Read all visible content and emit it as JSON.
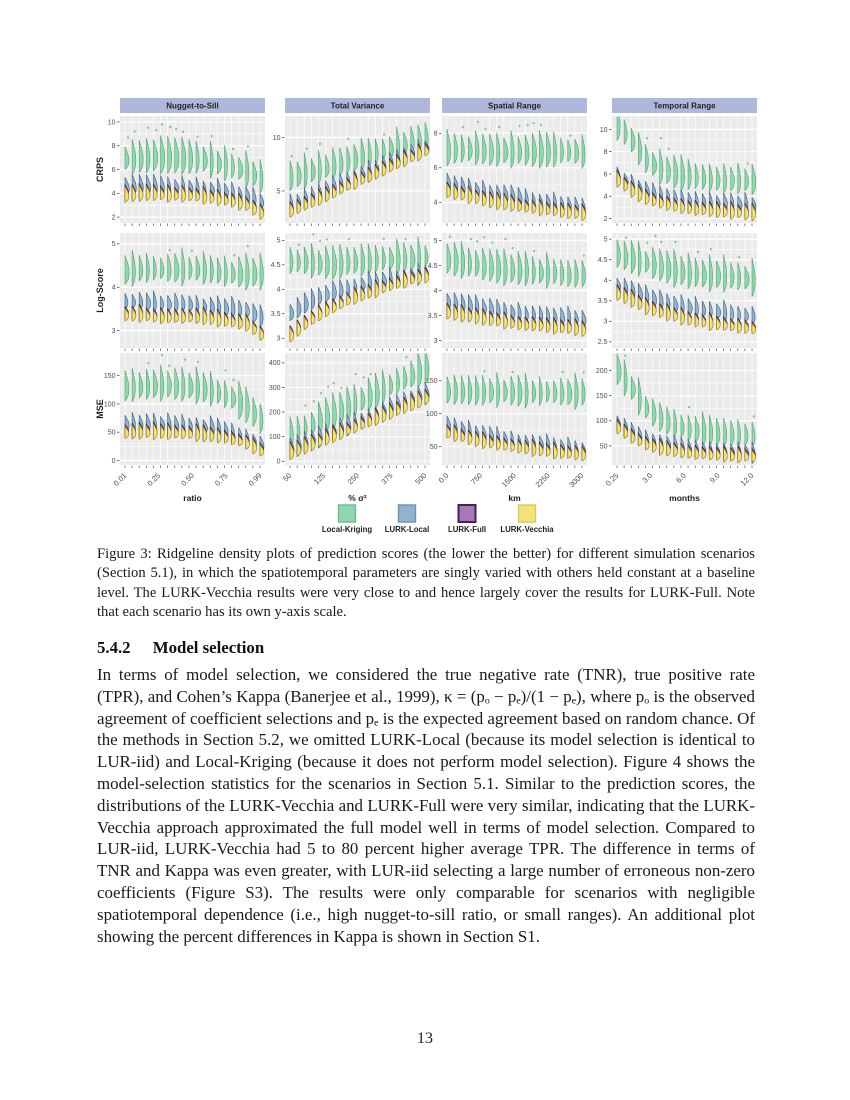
{
  "page": {
    "number": "13"
  },
  "figure": {
    "caption": "Figure 3: Ridgeline density plots of prediction scores (the lower the better) for different simulation scenarios (Section 5.1), in which the spatiotemporal parameters are singly varied with others held constant at a baseline level. The LURK-Vecchia results were very close to and hence largely cover the results for LURK-Full. Note that each scenario has its own y-axis scale.",
    "column_headers": [
      "Nugget-to-Sill",
      "Total Variance",
      "Spatial Range",
      "Temporal Range"
    ],
    "row_labels": [
      "CRPS",
      "Log-Score",
      "MSE"
    ],
    "x_axis_labels": [
      "ratio",
      "% σ²",
      "km",
      "months"
    ],
    "x_tick_labels": [
      [
        "0.01",
        "0.25",
        "0.50",
        "0.75",
        "0.99"
      ],
      [
        "50",
        "125",
        "250",
        "375",
        "500"
      ],
      [
        "0.0",
        "750",
        "1500",
        "2250",
        "3000"
      ],
      [
        "0.25",
        "3.0",
        "6.0",
        "9.0",
        "12.0"
      ]
    ],
    "legend": [
      {
        "name": "Local-Kriging",
        "fill": "#90D8AC",
        "stroke": "#6FB893"
      },
      {
        "name": "LURK-Local",
        "fill": "#92B3CE",
        "stroke": "#6E93AF"
      },
      {
        "name": "LURK-Full",
        "fill": "#A678B5",
        "stroke": "#46205C"
      },
      {
        "name": "LURK-Vecchia",
        "fill": "#F2E375",
        "stroke": "#D8C95B"
      }
    ],
    "colors": {
      "header_bg": "#AEB8DC",
      "header_text": "#1f1f1f",
      "panel_bg": "#EBEBEB",
      "grid": "#FFFFFF",
      "tick_text": "#4d4d4d",
      "tick_mark": "#333333",
      "green_fill": "#90D8AC",
      "green_stroke": "#4FA474",
      "blue_fill": "#92B3CE",
      "blue_stroke": "#35617F",
      "purple_fill": "#A678B5",
      "purple_stroke": "#3A1850",
      "yellow_fill": "#F2E375",
      "yellow_stroke": "#9C8514"
    },
    "chart_data": {
      "type": "ridgeline",
      "description": "12 panels (3 score rows x 4 scenario columns), ~20 ridge groups per panel; each group has Local-Kriging (green, highest), LURK-Local (blue), LURK-Full (purple, hidden behind) and LURK-Vecchia (yellow, lowest). Values below are approximate ridge-center trajectories in data units, left to right.",
      "panels": [
        [
          {
            "ylim": [
              1.5,
              10.5
            ],
            "yticks": [
              2,
              4,
              6,
              8,
              10
            ],
            "green": [
              6.8,
              6.9,
              7.0,
              7.0,
              6.9,
              6.8,
              6.5,
              6.2,
              5.8,
              5.2
            ],
            "blue": [
              4.4,
              4.5,
              4.5,
              4.4,
              4.4,
              4.3,
              4.2,
              4.0,
              3.7,
              3.2
            ],
            "yellow": [
              3.8,
              3.9,
              3.9,
              3.8,
              3.8,
              3.7,
              3.5,
              3.3,
              3.0,
              2.3
            ]
          },
          {
            "ylim": [
              2.0,
              12.0
            ],
            "yticks": [
              5,
              10
            ],
            "green": [
              6.2,
              6.6,
              7.0,
              7.4,
              7.8,
              8.2,
              8.6,
              9.0,
              9.4,
              9.8
            ],
            "blue": [
              3.6,
              4.2,
              4.8,
              5.4,
              6.0,
              6.6,
              7.2,
              7.8,
              8.4,
              8.9
            ],
            "yellow": [
              3.1,
              3.7,
              4.3,
              4.9,
              5.6,
              6.2,
              6.8,
              7.5,
              8.1,
              8.7
            ]
          },
          {
            "ylim": [
              2.8,
              9.0
            ],
            "yticks": [
              4,
              6,
              8
            ],
            "green": [
              7.0,
              7.0,
              7.0,
              6.9,
              6.9,
              6.9,
              6.9,
              6.9,
              6.9,
              6.8
            ],
            "blue": [
              5.0,
              4.8,
              4.6,
              4.4,
              4.3,
              4.1,
              4.0,
              3.9,
              3.8,
              3.6
            ],
            "yellow": [
              4.6,
              4.4,
              4.2,
              4.0,
              3.9,
              3.7,
              3.6,
              3.5,
              3.4,
              3.3
            ]
          },
          {
            "ylim": [
              1.6,
              11.2
            ],
            "yticks": [
              2,
              4,
              6,
              8,
              10
            ],
            "green": [
              10.3,
              8.8,
              7.0,
              6.3,
              5.9,
              5.7,
              5.5,
              5.4,
              5.4,
              5.3
            ],
            "blue": [
              5.7,
              4.8,
              4.2,
              3.9,
              3.7,
              3.5,
              3.4,
              3.3,
              3.2,
              3.1
            ],
            "yellow": [
              5.4,
              4.4,
              3.7,
              3.3,
              3.0,
              2.8,
              2.7,
              2.6,
              2.5,
              2.4
            ]
          }
        ],
        [
          {
            "ylim": [
              2.6,
              5.25
            ],
            "yticks": [
              3,
              4,
              5
            ],
            "green": [
              4.35,
              4.4,
              4.4,
              4.4,
              4.4,
              4.4,
              4.35,
              4.3,
              4.3,
              4.3
            ],
            "blue": [
              3.65,
              3.65,
              3.6,
              3.6,
              3.6,
              3.55,
              3.5,
              3.5,
              3.45,
              3.3
            ],
            "yellow": [
              3.35,
              3.35,
              3.3,
              3.3,
              3.3,
              3.3,
              3.25,
              3.2,
              3.15,
              2.9
            ]
          },
          {
            "ylim": [
              2.8,
              5.15
            ],
            "yticks": [
              3.0,
              3.5,
              4.0,
              4.5,
              5.0
            ],
            "green": [
              4.55,
              4.55,
              4.5,
              4.5,
              4.55,
              4.55,
              4.6,
              4.6,
              4.6,
              4.65
            ],
            "blue": [
              3.5,
              3.7,
              3.85,
              3.95,
              4.0,
              4.1,
              4.15,
              4.2,
              4.25,
              4.3
            ],
            "yellow": [
              3.05,
              3.3,
              3.5,
              3.65,
              3.8,
              3.9,
              4.0,
              4.1,
              4.2,
              4.25
            ]
          },
          {
            "ylim": [
              2.85,
              5.15
            ],
            "yticks": [
              3.0,
              3.5,
              4.0,
              4.5,
              5.0
            ],
            "green": [
              4.6,
              4.55,
              4.5,
              4.45,
              4.4,
              4.4,
              4.35,
              4.35,
              4.3,
              4.3
            ],
            "blue": [
              3.75,
              3.7,
              3.65,
              3.6,
              3.55,
              3.5,
              3.5,
              3.45,
              3.45,
              3.4
            ],
            "yellow": [
              3.55,
              3.5,
              3.45,
              3.4,
              3.35,
              3.3,
              3.3,
              3.25,
              3.25,
              3.2
            ]
          },
          {
            "ylim": [
              2.35,
              5.15
            ],
            "yticks": [
              2.5,
              3.0,
              3.5,
              4.0,
              4.5,
              5.0
            ],
            "green": [
              4.6,
              4.5,
              4.4,
              4.3,
              4.2,
              4.15,
              4.1,
              4.1,
              4.05,
              4.0
            ],
            "blue": [
              3.85,
              3.7,
              3.55,
              3.45,
              3.35,
              3.3,
              3.25,
              3.2,
              3.15,
              3.1
            ],
            "yellow": [
              3.65,
              3.5,
              3.3,
              3.2,
              3.1,
              3.0,
              2.95,
              2.9,
              2.85,
              2.8
            ]
          }
        ],
        [
          {
            "ylim": [
              -8,
              190
            ],
            "yticks": [
              0,
              50,
              100,
              150
            ],
            "green": [
              128,
              130,
              132,
              132,
              130,
              127,
              120,
              110,
              95,
              70
            ],
            "blue": [
              62,
              63,
              62,
              61,
              60,
              58,
              54,
              48,
              40,
              25
            ],
            "yellow": [
              48,
              49,
              49,
              48,
              47,
              45,
              42,
              37,
              30,
              16
            ]
          },
          {
            "ylim": [
              -15,
              440
            ],
            "yticks": [
              0,
              100,
              200,
              300,
              400
            ],
            "green": [
              105,
              135,
              165,
              195,
              225,
              255,
              285,
              315,
              345,
              375
            ],
            "blue": [
              45,
              70,
              95,
              120,
              145,
              170,
              195,
              220,
              245,
              268
            ],
            "yellow": [
              35,
              58,
              82,
              106,
              130,
              155,
              180,
              205,
              230,
              255
            ]
          },
          {
            "ylim": [
              22,
              192
            ],
            "yticks": [
              50,
              100,
              150
            ],
            "green": [
              133,
              133,
              132,
              132,
              132,
              131,
              131,
              131,
              130,
              130
            ],
            "blue": [
              80,
              74,
              68,
              63,
              59,
              55,
              52,
              49,
              46,
              43
            ],
            "yellow": [
              70,
              64,
              58,
              54,
              50,
              47,
              44,
              41,
              39,
              37
            ]
          },
          {
            "ylim": [
              12,
              235
            ],
            "yticks": [
              50,
              100,
              150,
              200
            ],
            "green": [
              198,
              160,
              120,
              100,
              88,
              80,
              76,
              73,
              71,
              69
            ],
            "blue": [
              93,
              75,
              60,
              52,
              46,
              42,
              39,
              37,
              35,
              33
            ],
            "yellow": [
              85,
              65,
              50,
              43,
              38,
              34,
              32,
              30,
              29,
              28
            ]
          }
        ]
      ]
    }
  },
  "section": {
    "number": "5.4.2",
    "title": "Model selection",
    "body": "In terms of model selection, we considered the true negative rate (TNR), true positive rate (TPR), and Cohen’s Kappa (Banerjee et al., 1999), κ = (pₒ − pₑ)/(1 − pₑ), where pₒ is the observed agreement of coefficient selections and pₑ is the expected agreement based on random chance. Of the methods in Section 5.2, we omitted LURK-Local (because its model selection is identical to LUR-iid) and Local-Kriging (because it does not perform model selection). Figure 4 shows the model-selection statistics for the scenarios in Section 5.1. Similar to the prediction scores, the distributions of the LURK-Vecchia and LURK-Full were very similar, indicating that the LURK-Vecchia approach approximated the full model well in terms of model selection. Compared to LUR-iid, LURK-Vecchia had 5 to 80 percent higher average TPR. The difference in terms of TNR and Kappa was even greater, with LUR-iid selecting a large number of erroneous non-zero coefficients (Figure S3). The results were only comparable for scenarios with negligible spatiotemporal dependence (i.e., high nugget-to-sill ratio, or small ranges). An additional plot showing the percent differences in Kappa is shown in Section S1."
  }
}
